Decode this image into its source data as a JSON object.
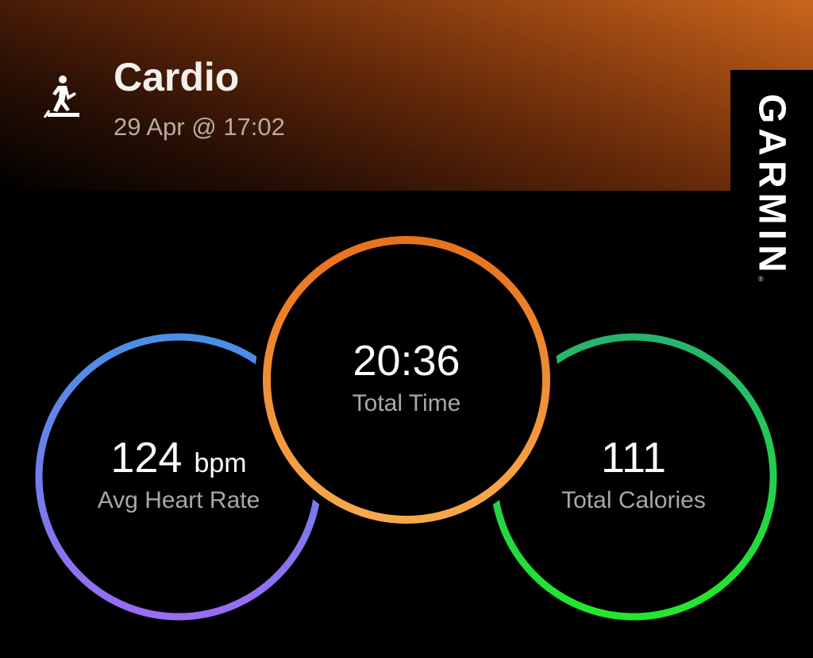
{
  "header": {
    "activity_icon": "treadmill-runner-icon",
    "title": "Cardio",
    "datetime": "29 Apr @ 17:02",
    "brand": "GARMIN",
    "brand_mark": "®"
  },
  "stats": [
    {
      "value": "124",
      "unit": "bpm",
      "label": "Avg Heart Rate",
      "colors": [
        "#4a8fe6",
        "#9a6cf2"
      ]
    },
    {
      "value": "20:36",
      "unit": "",
      "label": "Total Time",
      "colors": [
        "#e8721c",
        "#f8a84c"
      ]
    },
    {
      "value": "111",
      "unit": "",
      "label": "Total Calories",
      "colors": [
        "#27b46e",
        "#22e82c"
      ]
    }
  ]
}
